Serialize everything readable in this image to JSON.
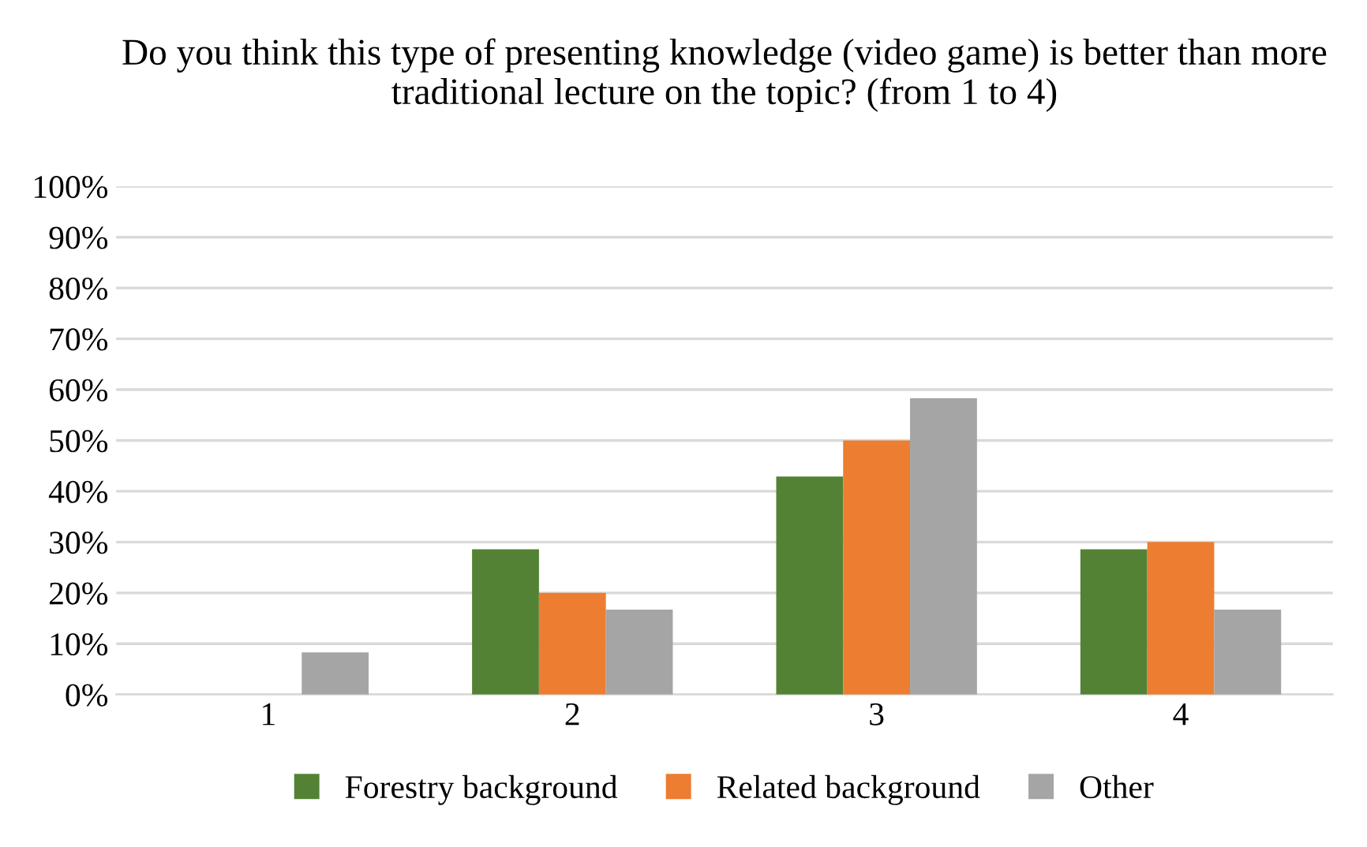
{
  "chart_data": {
    "type": "bar",
    "title": "Do you think this type of presenting knowledge (video game) is better than more traditional lecture on the topic? (from 1 to 4)",
    "categories": [
      "1",
      "2",
      "3",
      "4"
    ],
    "series": [
      {
        "name": "Forestry background",
        "color": "#548235",
        "values": [
          0,
          28.6,
          42.9,
          28.6
        ]
      },
      {
        "name": "Related background",
        "color": "#ed7d31",
        "values": [
          0,
          20,
          50,
          30
        ]
      },
      {
        "name": "Other",
        "color": "#a5a5a5",
        "values": [
          8.3,
          16.7,
          58.3,
          16.7
        ]
      }
    ],
    "ylim": [
      0,
      100
    ],
    "yticks": [
      {
        "value": 0,
        "label": "0%"
      },
      {
        "value": 10,
        "label": "10%"
      },
      {
        "value": 20,
        "label": "20%"
      },
      {
        "value": 30,
        "label": "30%"
      },
      {
        "value": 40,
        "label": "40%"
      },
      {
        "value": 50,
        "label": "50%"
      },
      {
        "value": 60,
        "label": "60%"
      },
      {
        "value": 70,
        "label": "70%"
      },
      {
        "value": 80,
        "label": "80%"
      },
      {
        "value": 90,
        "label": "90%"
      },
      {
        "value": 100,
        "label": "100%"
      }
    ],
    "grid": "y",
    "legend": "bottom"
  }
}
